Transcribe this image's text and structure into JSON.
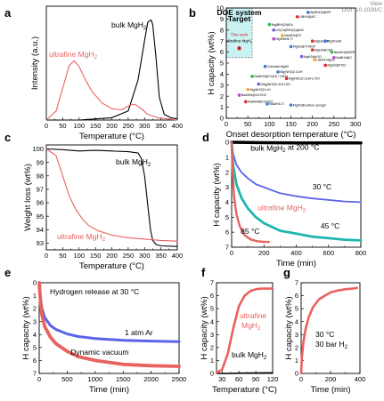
{
  "doi_text": "View\nDOI: 10.1039/C",
  "chart_data": [
    {
      "panel": "a",
      "type": "line",
      "xlabel": "Temperature (°C)",
      "ylabel": "Intensity (a.u.)",
      "xlim": [
        0,
        400
      ],
      "xticks": [
        0,
        50,
        100,
        150,
        200,
        250,
        300,
        350,
        400
      ],
      "ylim": [
        0,
        1
      ],
      "series": [
        {
          "name": "bulk MgH2",
          "color": "#000000",
          "x": [
            0,
            100,
            200,
            250,
            280,
            300,
            310,
            320,
            325,
            335,
            345,
            360,
            380,
            400
          ],
          "y": [
            0.0,
            0.0,
            0.02,
            0.08,
            0.35,
            0.7,
            0.86,
            0.88,
            0.84,
            0.55,
            0.2,
            0.05,
            0.02,
            0.01
          ]
        },
        {
          "name": "ultrafine MgH2",
          "color": "#e8625f",
          "x": [
            0,
            30,
            50,
            70,
            85,
            100,
            120,
            140,
            170,
            200,
            230,
            255,
            270,
            290,
            310,
            340,
            370,
            400
          ],
          "y": [
            0.0,
            0.08,
            0.28,
            0.48,
            0.52,
            0.47,
            0.35,
            0.25,
            0.15,
            0.1,
            0.09,
            0.13,
            0.14,
            0.1,
            0.05,
            0.02,
            0.01,
            0.0
          ]
        }
      ],
      "annotations": [
        "bulk MgH2",
        "ultrafine MgH2"
      ]
    },
    {
      "panel": "b",
      "type": "scatter",
      "xlabel": "Onset desorption temperature (°C)",
      "ylabel": "H capacity (wt%)",
      "xlim": [
        0,
        300
      ],
      "xticks": [
        0,
        50,
        100,
        150,
        200,
        250,
        300
      ],
      "ylim": [
        0,
        10
      ],
      "yticks": [
        0,
        1,
        2,
        3,
        4,
        5,
        6,
        7,
        8,
        9,
        10
      ],
      "target_box": {
        "label_lines": [
          "DOE system",
          "Target"
        ],
        "x": [
          0,
          60
        ],
        "y": [
          5.5,
          10
        ]
      },
      "this_work": {
        "label_lines": [
          "This work",
          "ultrafine MgH2"
        ],
        "x": 30,
        "y": 6.7
      },
      "points": [
        {
          "x": 190,
          "y": 9.6,
          "label": "Al(BH4)3@ZIF"
        },
        {
          "x": 165,
          "y": 9.2,
          "label": "LiBH4@AC"
        },
        {
          "x": 100,
          "y": 8.5,
          "label": "Mg(BH4)2@Cu"
        },
        {
          "x": 110,
          "y": 8.0,
          "label": "Li2(Ca(BH4)3)@AC"
        },
        {
          "x": 130,
          "y": 7.5,
          "label": "NaAlH4@Ti"
        },
        {
          "x": 110,
          "y": 7.2,
          "label": "Mg2NiH4-Ti"
        },
        {
          "x": 200,
          "y": 7.0,
          "label": "MgH2@Ti"
        },
        {
          "x": 230,
          "y": 7.0,
          "label": "Mg2FeH6"
        },
        {
          "x": 150,
          "y": 6.5,
          "label": "MgH2@Ti-MOF"
        },
        {
          "x": 200,
          "y": 6.2,
          "label": "MgH2@CNT"
        },
        {
          "x": 245,
          "y": 6.0,
          "label": "NaAlH4@MOF"
        },
        {
          "x": 175,
          "y": 5.6,
          "label": "MgH2@rGO"
        },
        {
          "x": 205,
          "y": 5.3,
          "label": "LiBH4-MgH2"
        },
        {
          "x": 250,
          "y": 5.5,
          "label": "NaBH4@C"
        },
        {
          "x": 230,
          "y": 4.8,
          "label": "MgH2@TiO2"
        },
        {
          "x": 90,
          "y": 4.7,
          "label": "Colloidal MgH2"
        },
        {
          "x": 120,
          "y": 4.2,
          "label": "Mg(NH2)2-2LiH"
        },
        {
          "x": 140,
          "y": 3.6,
          "label": "Mg(NH2)2-2LiH-LiTiO"
        },
        {
          "x": 60,
          "y": 3.8,
          "label": "NaAlH4@Co(O) / HfCl4"
        },
        {
          "x": 75,
          "y": 3.1,
          "label": "2Mg(NH2)2-3LiH-KH"
        },
        {
          "x": 50,
          "y": 2.6,
          "label": "Mg(NH2)2-LiH"
        },
        {
          "x": 30,
          "y": 2.1,
          "label": "NaAlH4@CeTiO2"
        },
        {
          "x": 45,
          "y": 1.5,
          "label": "NaAlH4@CeTiO2"
        },
        {
          "x": 95,
          "y": 1.3,
          "label": "NaAlH4-Ti"
        },
        {
          "x": 150,
          "y": 1.2,
          "label": "MgH2@carbon aerogel"
        }
      ]
    },
    {
      "panel": "c",
      "type": "line",
      "xlabel": "Temperature (°C)",
      "ylabel": "Weight loss (wt%)",
      "xlim": [
        0,
        400
      ],
      "xticks": [
        0,
        50,
        100,
        150,
        200,
        250,
        300,
        350,
        400
      ],
      "ylim": [
        92.5,
        100.3
      ],
      "yticks": [
        93,
        94,
        95,
        96,
        97,
        98,
        99,
        100
      ],
      "series": [
        {
          "name": "bulk MgH2",
          "color": "#000000",
          "x": [
            0,
            50,
            100,
            150,
            200,
            250,
            280,
            290,
            300,
            310,
            318,
            325,
            335,
            350,
            400
          ],
          "y": [
            100,
            99.95,
            99.85,
            99.9,
            99.85,
            99.8,
            99.7,
            99.3,
            98.0,
            95.8,
            94.0,
            93.2,
            92.9,
            92.8,
            92.75
          ]
        },
        {
          "name": "ultrafine MgH2",
          "color": "#e8625f",
          "x": [
            0,
            30,
            50,
            70,
            90,
            110,
            130,
            160,
            200,
            250,
            300,
            350,
            400
          ],
          "y": [
            100,
            99.5,
            98.0,
            96.5,
            95.5,
            94.8,
            94.3,
            93.9,
            93.6,
            93.4,
            93.3,
            93.2,
            93.15
          ]
        }
      ],
      "annotations": [
        "bulk MgH2",
        "ultrafine MgH2"
      ]
    },
    {
      "panel": "d",
      "type": "line",
      "xlabel": "Time (min)",
      "ylabel": "H capacity (wt%)",
      "xlim": [
        0,
        800
      ],
      "xticks": [
        0,
        200,
        400,
        600,
        800
      ],
      "ylim": [
        7,
        0
      ],
      "yticks": [
        0,
        1,
        2,
        3,
        4,
        5,
        6,
        7
      ],
      "y_inverted": true,
      "series": [
        {
          "name": "bulk MgH2 at 200 °C",
          "color": "#000000",
          "x": [
            0,
            100,
            200,
            400,
            600,
            800
          ],
          "y": [
            0.0,
            0.02,
            0.03,
            0.04,
            0.05,
            0.05
          ]
        },
        {
          "name": "30 °C",
          "color": "#5a63e6",
          "x": [
            0,
            10,
            30,
            60,
            100,
            150,
            200,
            300,
            400,
            500,
            600,
            700,
            800
          ],
          "y": [
            0,
            0.8,
            1.5,
            2.0,
            2.4,
            2.8,
            3.0,
            3.4,
            3.6,
            3.75,
            3.85,
            3.95,
            4.0
          ]
        },
        {
          "name": "45 °C",
          "color": "#1fb6b0",
          "x": [
            0,
            10,
            30,
            60,
            100,
            150,
            200,
            300,
            400,
            500,
            600,
            700,
            800
          ],
          "y": [
            0,
            1.6,
            2.8,
            3.7,
            4.4,
            5.0,
            5.4,
            5.9,
            6.1,
            6.3,
            6.4,
            6.5,
            6.55
          ]
        },
        {
          "name": "85 °C",
          "color": "#e8625f",
          "x": [
            0,
            5,
            15,
            30,
            50,
            80,
            120,
            160,
            200,
            230
          ],
          "y": [
            0,
            1.8,
            3.6,
            4.8,
            5.6,
            6.2,
            6.5,
            6.6,
            6.65,
            6.65
          ]
        }
      ],
      "annotations": [
        "bulk MgH2 at 200 °C",
        "30 °C",
        "ultrafine MgH2",
        "45 °C",
        "85 °C"
      ]
    },
    {
      "panel": "e",
      "type": "line",
      "xlabel": "Time (min)",
      "ylabel": "H capacity (wt%)",
      "xlim": [
        0,
        2500
      ],
      "xticks": [
        0,
        500,
        1000,
        1500,
        2000,
        2500
      ],
      "ylim": [
        7,
        0
      ],
      "yticks": [
        0,
        1,
        2,
        3,
        4,
        5,
        6,
        7
      ],
      "y_inverted": true,
      "series": [
        {
          "name": "1 atm Ar",
          "color": "#5a63e6",
          "x": [
            0,
            25,
            50,
            100,
            200,
            300,
            500,
            700,
            1000,
            1500,
            2000,
            2500
          ],
          "y": [
            0,
            1.3,
            2.0,
            2.7,
            3.3,
            3.6,
            3.95,
            4.15,
            4.3,
            4.45,
            4.5,
            4.55
          ]
        },
        {
          "name": "Dynamic vacuum",
          "color": "#e8625f",
          "x": [
            0,
            25,
            50,
            100,
            200,
            300,
            500,
            700,
            1000,
            1500,
            2000,
            2500
          ],
          "y": [
            0,
            1.6,
            2.5,
            3.4,
            4.2,
            4.7,
            5.3,
            5.7,
            6.0,
            6.3,
            6.4,
            6.45
          ]
        }
      ],
      "annotations": [
        "Hydrogen release at 30 °C",
        "1 atm Ar",
        "Dynamic vacuum"
      ]
    },
    {
      "panel": "f",
      "type": "line",
      "xlabel": "Temperature (°C)",
      "ylabel": "H capacity (wt%)",
      "xlim": [
        20,
        120
      ],
      "xticks": [
        30,
        60,
        90,
        120
      ],
      "ylim": [
        0,
        7
      ],
      "yticks": [
        0,
        1,
        2,
        3,
        4,
        5,
        6,
        7
      ],
      "series": [
        {
          "name": "bulk MgH2",
          "color": "#000000",
          "x": [
            20,
            40,
            60,
            80,
            100,
            120
          ],
          "y": [
            0.0,
            0.0,
            0.02,
            0.03,
            0.04,
            0.05
          ]
        },
        {
          "name": "ultrafine MgH2",
          "color": "#e8625f",
          "x": [
            20,
            30,
            40,
            50,
            60,
            70,
            80,
            90,
            100,
            110,
            120
          ],
          "y": [
            0.05,
            0.3,
            1.5,
            3.5,
            5.2,
            6.0,
            6.35,
            6.5,
            6.55,
            6.55,
            6.55
          ]
        }
      ],
      "annotations": [
        "ultrafine MgH2",
        "bulk MgH2"
      ]
    },
    {
      "panel": "g",
      "type": "line",
      "xlabel": "Time (min)",
      "ylabel": "H capacity (wt%)",
      "xlim": [
        0,
        400
      ],
      "xticks": [
        0,
        200,
        400
      ],
      "ylim": [
        0,
        7
      ],
      "yticks": [
        0,
        1,
        2,
        3,
        4,
        5,
        6,
        7
      ],
      "series": [
        {
          "name": "30 °C 30 bar H2",
          "color": "#e8625f",
          "x": [
            0,
            5,
            15,
            30,
            50,
            80,
            120,
            160,
            200,
            250,
            300,
            350,
            380
          ],
          "y": [
            0,
            1.2,
            2.4,
            3.4,
            4.3,
            5.1,
            5.7,
            6.0,
            6.25,
            6.4,
            6.5,
            6.55,
            6.6
          ]
        }
      ],
      "annotations": [
        "30 °C",
        "30 bar H2"
      ]
    }
  ]
}
